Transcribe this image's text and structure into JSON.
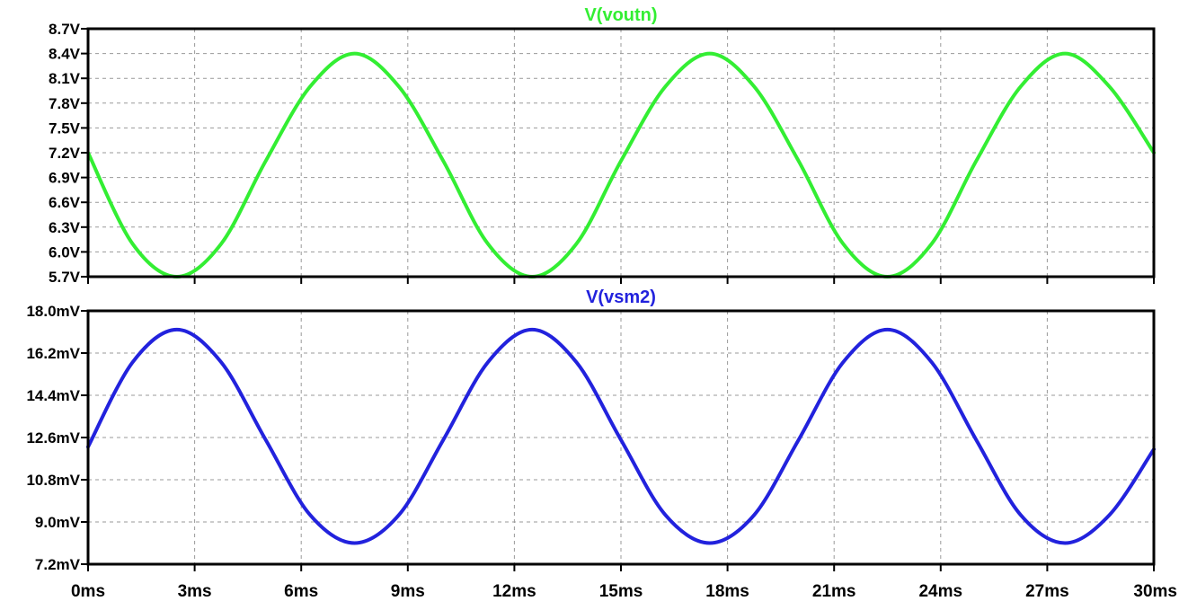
{
  "chart_data": [
    {
      "type": "line",
      "title": "V(voutn)",
      "title_color": "#33ee33",
      "x_ticks": [
        0,
        3,
        6,
        9,
        12,
        15,
        18,
        21,
        24,
        27,
        30
      ],
      "xlim": [
        0,
        30
      ],
      "y_ticks": [
        5.7,
        6.0,
        6.3,
        6.6,
        6.9,
        7.2,
        7.5,
        7.8,
        8.1,
        8.4,
        8.7
      ],
      "y_tick_labels": [
        "5.7V",
        "6.0V",
        "6.3V",
        "6.6V",
        "6.9V",
        "7.2V",
        "7.5V",
        "7.8V",
        "8.1V",
        "8.4V",
        "8.7V"
      ],
      "ylim": [
        5.7,
        8.7
      ],
      "grid": true,
      "series": [
        {
          "color": "#33ee33",
          "x": [
            0,
            1.25,
            2.5,
            3.75,
            5,
            6.25,
            7.5,
            8.75,
            10,
            11.25,
            12.5,
            13.75,
            15,
            16.25,
            17.5,
            18.75,
            20,
            21.25,
            22.5,
            23.75,
            25,
            26.25,
            27.5,
            28.75,
            30
          ],
          "values": [
            7.2,
            6.1,
            5.7,
            6.1,
            7.1,
            8.0,
            8.4,
            8.0,
            7.1,
            6.1,
            5.7,
            6.1,
            7.1,
            8.0,
            8.4,
            8.0,
            7.1,
            6.1,
            5.7,
            6.1,
            7.1,
            8.0,
            8.4,
            8.0,
            7.2
          ]
        }
      ]
    },
    {
      "type": "line",
      "title": "V(vsm2)",
      "title_color": "#2222dd",
      "x_ticks": [
        0,
        3,
        6,
        9,
        12,
        15,
        18,
        21,
        24,
        27,
        30
      ],
      "x_tick_labels": [
        "0ms",
        "3ms",
        "6ms",
        "9ms",
        "12ms",
        "15ms",
        "18ms",
        "21ms",
        "24ms",
        "27ms",
        "30ms"
      ],
      "xlim": [
        0,
        30
      ],
      "y_ticks": [
        7.2,
        9.0,
        10.8,
        12.6,
        14.4,
        16.2,
        18.0
      ],
      "y_tick_labels": [
        "7.2mV",
        "9.0mV",
        "10.8mV",
        "12.6mV",
        "14.4mV",
        "16.2mV",
        "18.0mV"
      ],
      "ylim": [
        7.2,
        18.0
      ],
      "grid": true,
      "series": [
        {
          "color": "#2222dd",
          "x": [
            0,
            1.25,
            2.5,
            3.75,
            5,
            6.25,
            7.5,
            8.75,
            10,
            11.25,
            12.5,
            13.75,
            15,
            16.25,
            17.5,
            18.75,
            20,
            21.25,
            22.5,
            23.75,
            25,
            26.25,
            27.5,
            28.75,
            30
          ],
          "values": [
            12.2,
            15.8,
            17.2,
            15.8,
            12.5,
            9.3,
            8.1,
            9.3,
            12.5,
            15.8,
            17.2,
            15.8,
            12.5,
            9.3,
            8.1,
            9.3,
            12.5,
            15.8,
            17.2,
            15.8,
            12.5,
            9.3,
            8.1,
            9.3,
            12.1
          ]
        }
      ]
    }
  ]
}
